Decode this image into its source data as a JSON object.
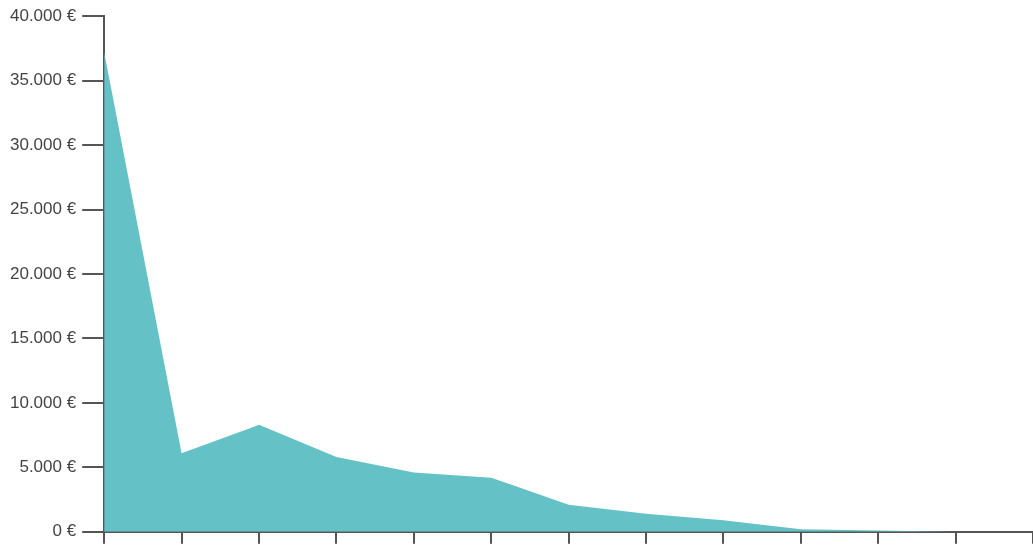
{
  "chart_data": {
    "type": "area",
    "categories": [
      null,
      null,
      null,
      null,
      null,
      null,
      null,
      null,
      null,
      null,
      null,
      null,
      null
    ],
    "series": [
      {
        "color": "#64c1c6",
        "values": [
          37200,
          6100,
          8300,
          5800,
          4600,
          4200,
          2100,
          1400,
          900,
          200,
          100,
          0,
          0
        ]
      }
    ],
    "ylim": [
      0,
      40000
    ],
    "yticks": [
      {
        "value": 0,
        "label": "0 €"
      },
      {
        "value": 5000,
        "label": "5.000 €"
      },
      {
        "value": 10000,
        "label": "10.000 €"
      },
      {
        "value": 15000,
        "label": "15.000 €"
      },
      {
        "value": 20000,
        "label": "20.000 €"
      },
      {
        "value": 25000,
        "label": "25.000 €"
      },
      {
        "value": 30000,
        "label": "30.000 €"
      },
      {
        "value": 35000,
        "label": "35.000 €"
      },
      {
        "value": 40000,
        "label": "40.000 €"
      }
    ],
    "grid": false,
    "legend": false,
    "tick_labels": "y"
  }
}
